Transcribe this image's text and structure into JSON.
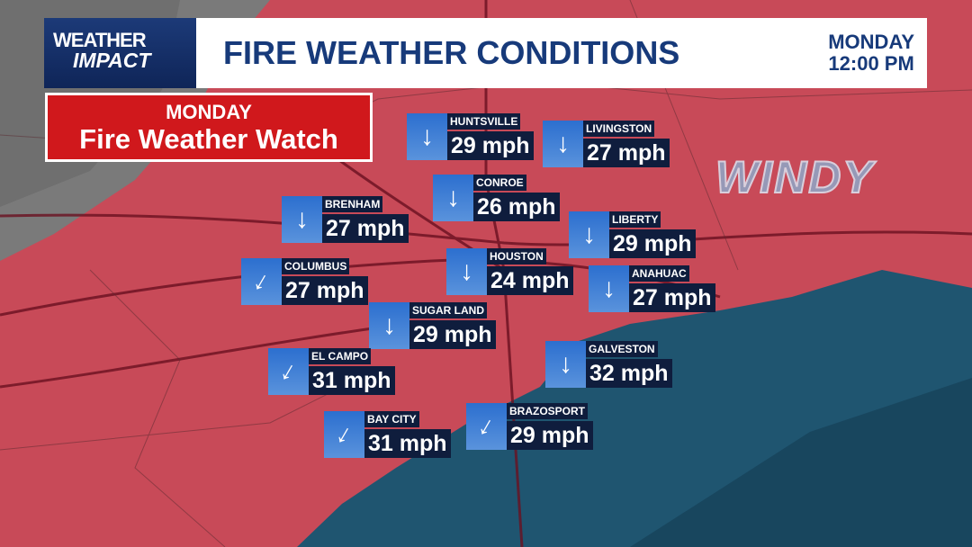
{
  "brand": {
    "line1": "WEATHER",
    "line2": "IMPACT"
  },
  "header": {
    "title": "FIRE WEATHER CONDITIONS",
    "day": "MONDAY",
    "time": "12:00 PM"
  },
  "alert": {
    "day": "MONDAY",
    "label": "Fire Weather Watch",
    "color": "#d0181c"
  },
  "overlay_text": "WINDY",
  "stations": [
    {
      "name": "HUNTSVILLE",
      "wind": "29 mph",
      "direction": "S"
    },
    {
      "name": "LIVINGSTON",
      "wind": "27 mph",
      "direction": "S"
    },
    {
      "name": "CONROE",
      "wind": "26 mph",
      "direction": "S"
    },
    {
      "name": "BRENHAM",
      "wind": "27 mph",
      "direction": "S"
    },
    {
      "name": "LIBERTY",
      "wind": "29 mph",
      "direction": "S"
    },
    {
      "name": "COLUMBUS",
      "wind": "27 mph",
      "direction": "SW"
    },
    {
      "name": "HOUSTON",
      "wind": "24 mph",
      "direction": "S"
    },
    {
      "name": "ANAHUAC",
      "wind": "27 mph",
      "direction": "S"
    },
    {
      "name": "SUGAR LAND",
      "wind": "29 mph",
      "direction": "S"
    },
    {
      "name": "EL CAMPO",
      "wind": "31 mph",
      "direction": "SW"
    },
    {
      "name": "GALVESTON",
      "wind": "32 mph",
      "direction": "S"
    },
    {
      "name": "BAY CITY",
      "wind": "31 mph",
      "direction": "SW"
    },
    {
      "name": "BRAZOSPORT",
      "wind": "29 mph",
      "direction": "SW"
    }
  ],
  "colors": {
    "land_warning": "#c84a58",
    "gulf": "#1f5570",
    "header_navy": "#173a7a",
    "arrow_box": "#2c6fcf"
  }
}
